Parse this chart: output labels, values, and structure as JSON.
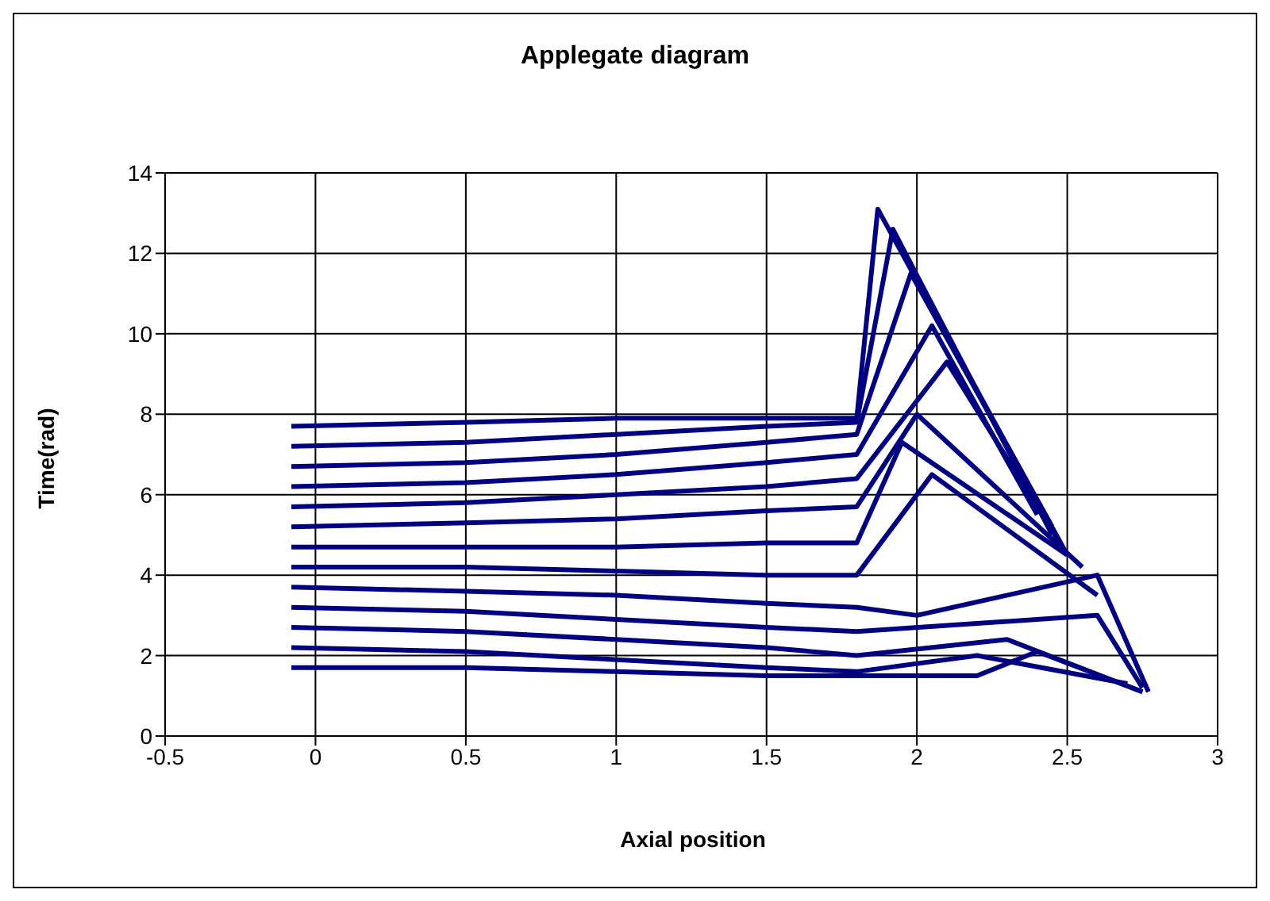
{
  "chart_data": {
    "type": "line",
    "title": "Applegate diagram",
    "xlabel": "Axial position",
    "ylabel": "Time(rad)",
    "xlim": [
      -0.5,
      3
    ],
    "xticks": [
      -0.5,
      0,
      0.5,
      1,
      1.5,
      2,
      2.5,
      3
    ],
    "ylim": [
      0,
      14
    ],
    "yticks": [
      0,
      2,
      4,
      6,
      8,
      10,
      12,
      14
    ],
    "grid": true,
    "marker": "none",
    "line_style": "solid",
    "series": [
      {
        "color": "#000080",
        "x": [
          -0.08,
          0.5,
          1.0,
          1.5,
          1.8,
          1.87,
          2.5
        ],
        "values": [
          7.7,
          7.8,
          7.9,
          7.9,
          7.9,
          13.1,
          4.5
        ]
      },
      {
        "color": "#000080",
        "x": [
          -0.08,
          0.5,
          1.0,
          1.5,
          1.8,
          1.92,
          2.45
        ],
        "values": [
          7.2,
          7.3,
          7.5,
          7.7,
          7.8,
          12.6,
          5.0
        ]
      },
      {
        "color": "#000080",
        "x": [
          -0.08,
          0.5,
          1.0,
          1.5,
          1.8,
          1.98,
          2.45
        ],
        "values": [
          6.7,
          6.8,
          7.0,
          7.3,
          7.5,
          11.5,
          5.2
        ]
      },
      {
        "color": "#000080",
        "x": [
          -0.08,
          0.5,
          1.0,
          1.5,
          1.8,
          2.05,
          2.4
        ],
        "values": [
          6.2,
          6.3,
          6.5,
          6.8,
          7.0,
          10.2,
          5.5
        ]
      },
      {
        "color": "#000080",
        "x": [
          -0.08,
          0.5,
          1.0,
          1.5,
          1.8,
          2.1,
          2.5
        ],
        "values": [
          5.7,
          5.8,
          6.0,
          6.2,
          6.4,
          9.3,
          4.5
        ]
      },
      {
        "color": "#000080",
        "x": [
          -0.08,
          0.5,
          1.0,
          1.5,
          1.8,
          2.0,
          2.55
        ],
        "values": [
          5.2,
          5.3,
          5.4,
          5.6,
          5.7,
          8.0,
          4.2
        ]
      },
      {
        "color": "#000080",
        "x": [
          -0.08,
          0.5,
          1.0,
          1.5,
          1.8,
          1.95,
          2.5
        ],
        "values": [
          4.7,
          4.7,
          4.7,
          4.8,
          4.8,
          7.3,
          4.5
        ]
      },
      {
        "color": "#000080",
        "x": [
          -0.08,
          0.5,
          1.0,
          1.5,
          1.8,
          2.05,
          2.6
        ],
        "values": [
          4.2,
          4.2,
          4.1,
          4.0,
          4.0,
          6.5,
          3.5
        ]
      },
      {
        "color": "#000080",
        "x": [
          -0.08,
          0.5,
          1.0,
          1.5,
          1.8,
          2.0,
          2.6,
          2.77
        ],
        "values": [
          3.7,
          3.6,
          3.5,
          3.3,
          3.2,
          3.0,
          4.0,
          1.1
        ]
      },
      {
        "color": "#000080",
        "x": [
          -0.08,
          0.5,
          1.0,
          1.5,
          1.8,
          2.2,
          2.6,
          2.75
        ],
        "values": [
          3.2,
          3.1,
          2.9,
          2.7,
          2.6,
          2.8,
          3.0,
          1.2
        ]
      },
      {
        "color": "#000080",
        "x": [
          -0.08,
          0.5,
          1.0,
          1.5,
          1.8,
          2.3,
          2.75
        ],
        "values": [
          2.7,
          2.6,
          2.4,
          2.2,
          2.0,
          2.4,
          1.1
        ]
      },
      {
        "color": "#000080",
        "x": [
          -0.08,
          0.5,
          1.0,
          1.5,
          1.8,
          2.2,
          2.7
        ],
        "values": [
          2.2,
          2.1,
          1.9,
          1.7,
          1.6,
          2.0,
          1.3
        ]
      },
      {
        "color": "#000080",
        "x": [
          -0.08,
          0.5,
          1.0,
          1.5,
          1.8,
          2.2,
          2.4,
          2.75
        ],
        "values": [
          1.7,
          1.7,
          1.6,
          1.5,
          1.5,
          1.5,
          2.1,
          1.1
        ]
      }
    ]
  }
}
